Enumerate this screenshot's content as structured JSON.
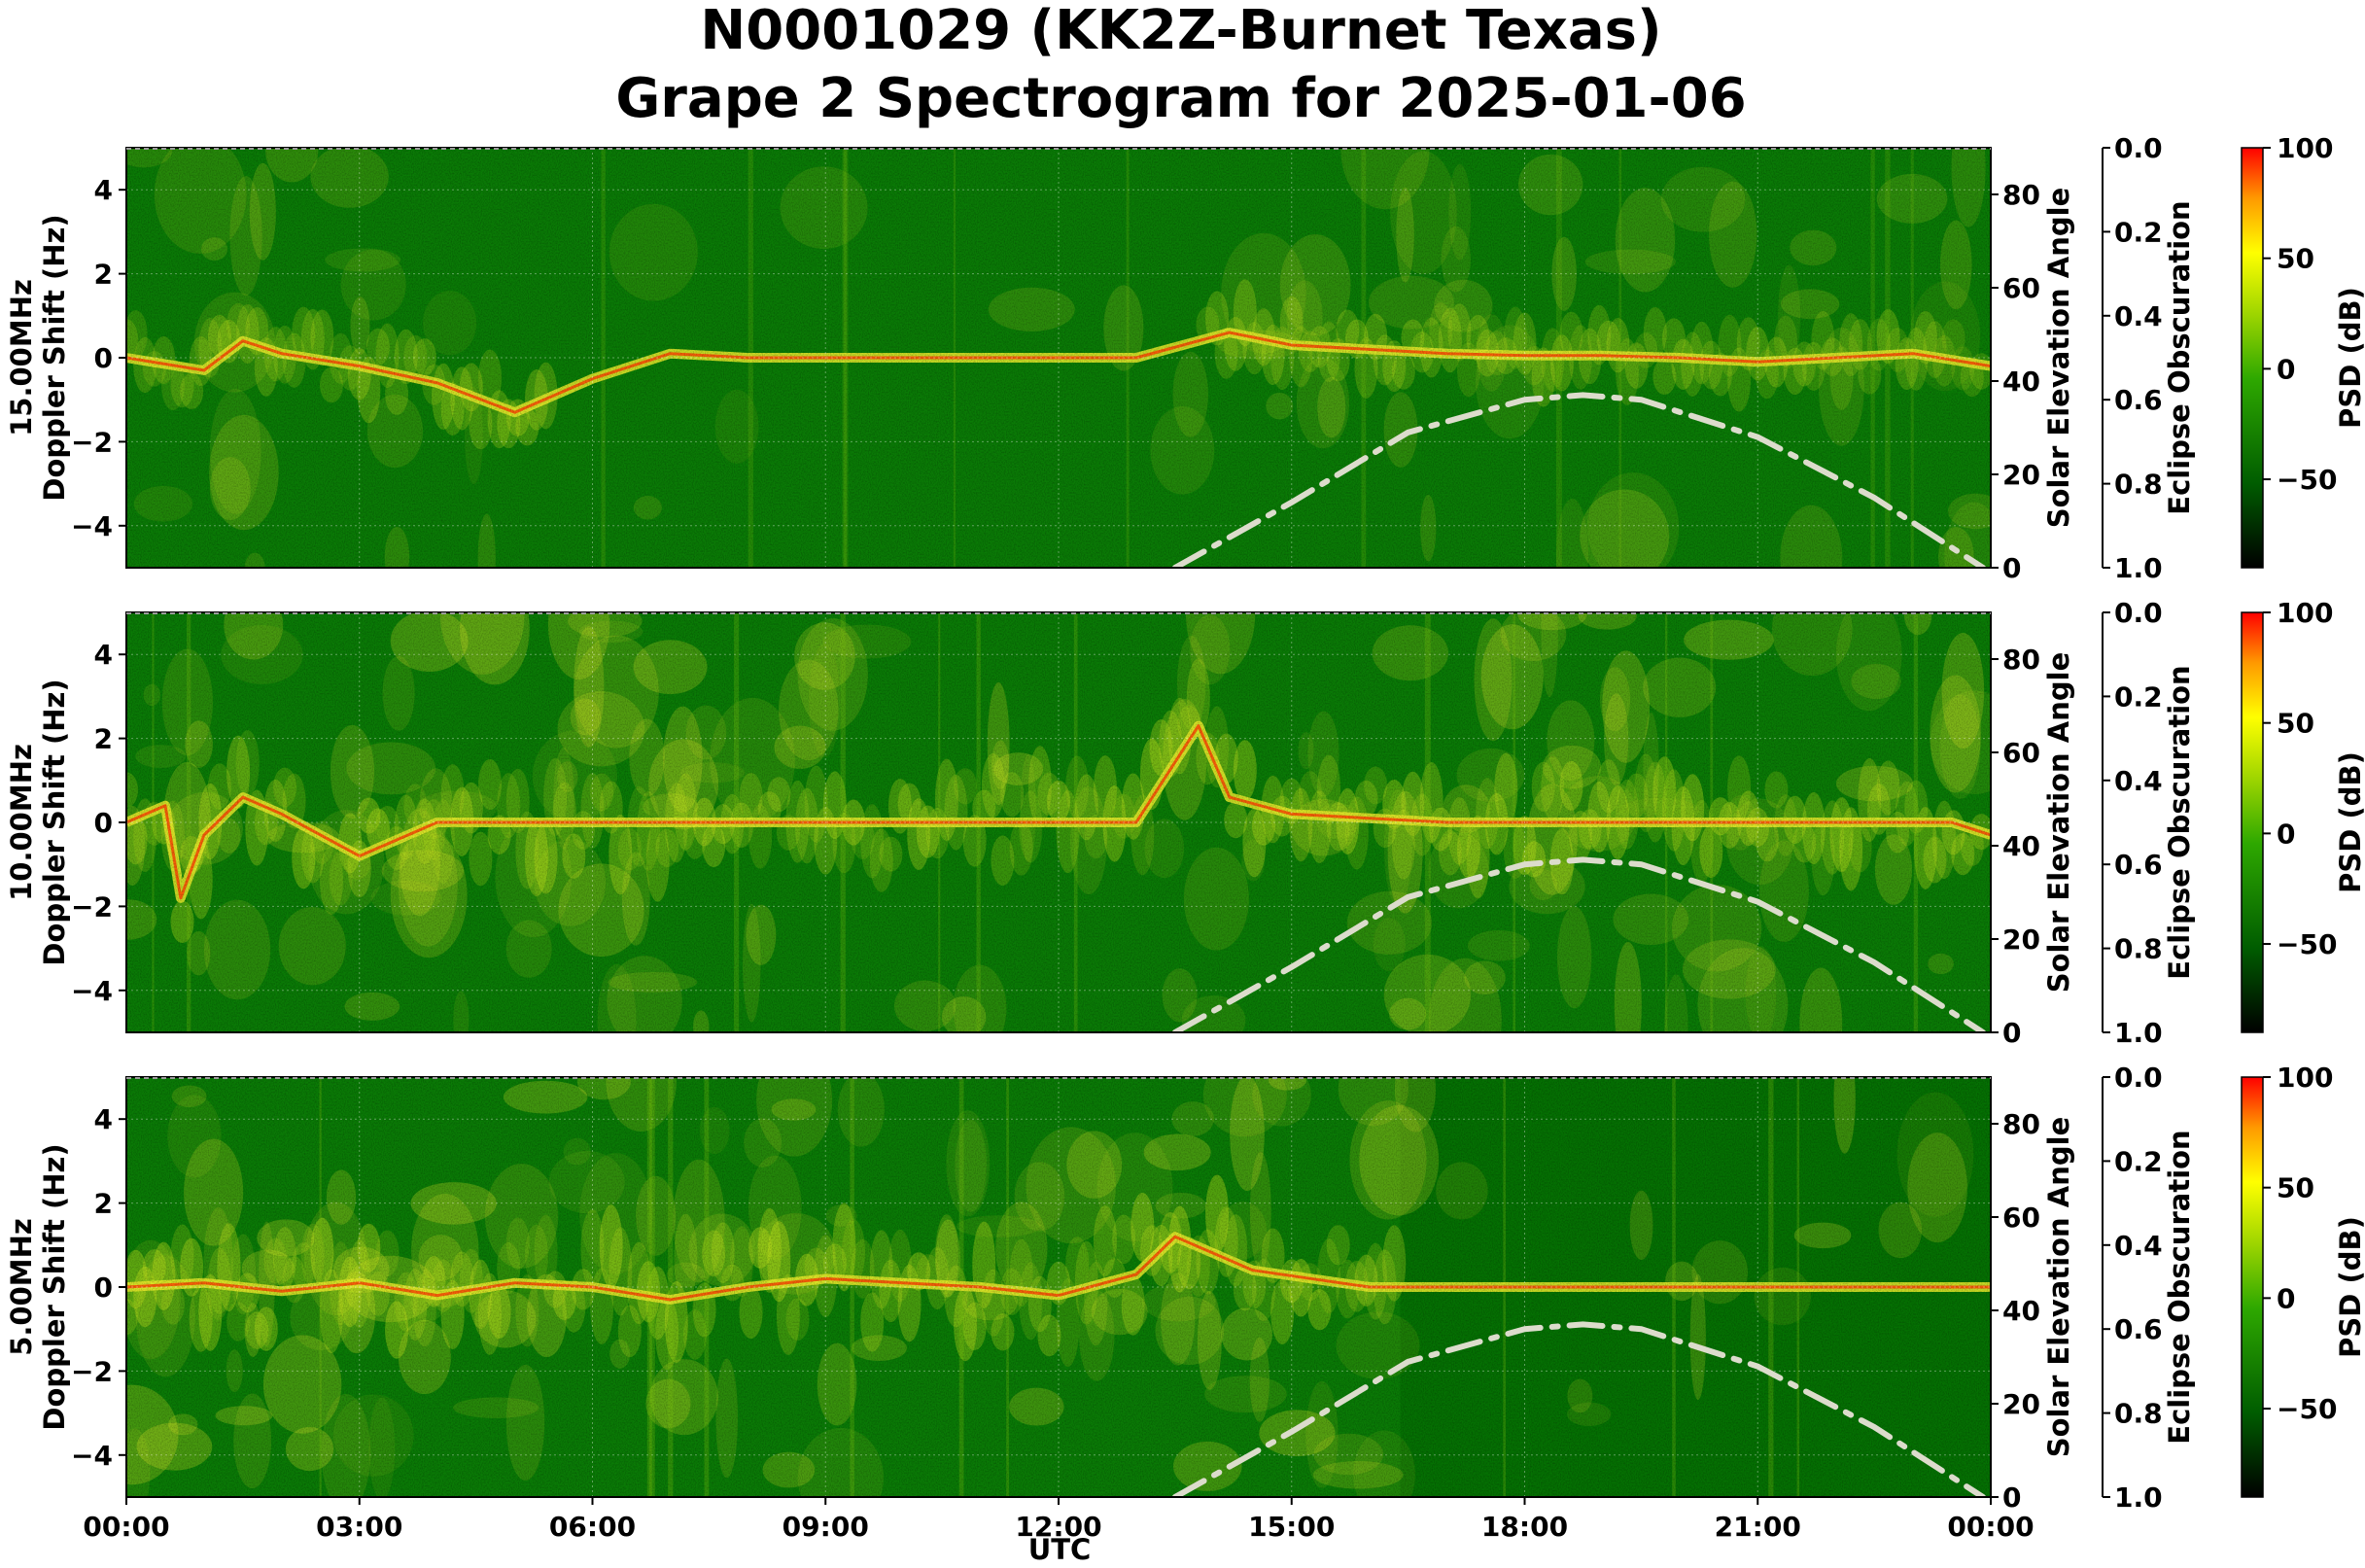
{
  "title": {
    "line1": "N0001029 (KK2Z-Burnet Texas)",
    "line2": "Grape 2 Spectrogram for 2025-01-06"
  },
  "colors": {
    "background_green": "#0a7a06",
    "trace_yellow": "#e8ea2a",
    "trace_red": "#ff3300",
    "solar_curve": "#dcdccc",
    "colormap": [
      "#000000",
      "#005c00",
      "#2ea800",
      "#9bd400",
      "#ffff00",
      "#ff9900",
      "#ff0000"
    ]
  },
  "axes": {
    "xlabel": "UTC",
    "xticks": [
      "00:00",
      "03:00",
      "06:00",
      "09:00",
      "12:00",
      "15:00",
      "18:00",
      "21:00",
      "00:00"
    ],
    "ylabel_doppler": "Doppler Shift (Hz)",
    "yticks_doppler": [
      "4",
      "2",
      "0",
      "−2",
      "−4"
    ],
    "ylabel_solar": "Solar Elevation Angle",
    "yticks_solar": [
      "80",
      "60",
      "40",
      "20",
      "0"
    ],
    "ylabel_eclipse": "Eclipse Obscuration",
    "yticks_eclipse": [
      "0.0",
      "0.2",
      "0.4",
      "0.6",
      "0.8",
      "1.0"
    ],
    "ylabel_psd": "PSD (dB)",
    "yticks_psd": [
      "100",
      "50",
      "0",
      "−50"
    ]
  },
  "chart_data": [
    {
      "type": "heatmap",
      "panel": "15.00MHz",
      "xlabel": "UTC",
      "ylabel": "Doppler Shift (Hz)",
      "xlim": [
        0,
        24
      ],
      "ylim": [
        -5,
        5
      ],
      "solar_ylim": [
        0,
        90
      ],
      "psd_range_db": [
        -90,
        100
      ],
      "activity": 0.55,
      "night_quiet": true,
      "doppler_trace_hours": [
        0,
        1,
        1.5,
        2,
        3,
        4,
        5,
        6,
        7,
        8,
        9,
        10,
        11,
        12,
        13,
        14.2,
        15,
        16,
        17,
        18,
        19,
        20,
        21,
        22,
        23,
        24
      ],
      "doppler_trace_hz": [
        0,
        -0.3,
        0.4,
        0.1,
        -0.2,
        -0.6,
        -1.3,
        -0.5,
        0.1,
        0,
        0,
        0,
        0,
        0,
        0,
        0.6,
        0.3,
        0.2,
        0.1,
        0.05,
        0.05,
        0,
        -0.1,
        0,
        0.1,
        -0.2
      ],
      "solar_elevation": {
        "x_hours": [
          13.5,
          15,
          16.5,
          18,
          18.75,
          19.5,
          21,
          22.5,
          23.9
        ],
        "deg": [
          0,
          14,
          29,
          36,
          37,
          36,
          28,
          15,
          0
        ]
      }
    },
    {
      "type": "heatmap",
      "panel": "10.00MHz",
      "xlabel": "UTC",
      "ylabel": "Doppler Shift (Hz)",
      "xlim": [
        0,
        24
      ],
      "ylim": [
        -5,
        5
      ],
      "solar_ylim": [
        0,
        90
      ],
      "psd_range_db": [
        -90,
        100
      ],
      "activity": 0.85,
      "night_quiet": false,
      "doppler_trace_hours": [
        0,
        0.5,
        0.7,
        1,
        1.5,
        2,
        3,
        4,
        5,
        6,
        7,
        8,
        9,
        10,
        11,
        12,
        13,
        13.8,
        14.2,
        15,
        16,
        17,
        18,
        20,
        22,
        23.5,
        24
      ],
      "doppler_trace_hz": [
        0,
        0.4,
        -1.8,
        -0.3,
        0.6,
        0.2,
        -0.8,
        0,
        0,
        0,
        0,
        0,
        0,
        0,
        0,
        0,
        0,
        2.3,
        0.6,
        0.2,
        0.1,
        0,
        0,
        0,
        0,
        0,
        -0.3
      ],
      "solar_elevation": {
        "x_hours": [
          13.5,
          15,
          16.5,
          18,
          18.75,
          19.5,
          21,
          22.5,
          23.9
        ],
        "deg": [
          0,
          14,
          29,
          36,
          37,
          36,
          28,
          15,
          0
        ]
      }
    },
    {
      "type": "heatmap",
      "panel": "5.00MHz",
      "xlabel": "UTC",
      "ylabel": "Doppler Shift (Hz)",
      "xlim": [
        0,
        24
      ],
      "ylim": [
        -5,
        5
      ],
      "solar_ylim": [
        0,
        90
      ],
      "psd_range_db": [
        -90,
        100
      ],
      "activity": 0.95,
      "night_quiet": false,
      "day_dark_after_hours": 16.4,
      "doppler_trace_hours": [
        0,
        1,
        2,
        3,
        4,
        5,
        6,
        7,
        8,
        9,
        10,
        11,
        12,
        13,
        13.5,
        14.5,
        16,
        18,
        20,
        22,
        24
      ],
      "doppler_trace_hz": [
        0,
        0.1,
        -0.1,
        0.1,
        -0.2,
        0.1,
        0,
        -0.3,
        0,
        0.2,
        0.1,
        0,
        -0.2,
        0.3,
        1.2,
        0.4,
        0,
        0,
        0,
        0,
        0
      ],
      "solar_elevation": {
        "x_hours": [
          13.5,
          15,
          16.5,
          18,
          18.75,
          19.5,
          21,
          22.5,
          23.9
        ],
        "deg": [
          0,
          14,
          29,
          36,
          37,
          36,
          28,
          15,
          0
        ]
      }
    }
  ]
}
